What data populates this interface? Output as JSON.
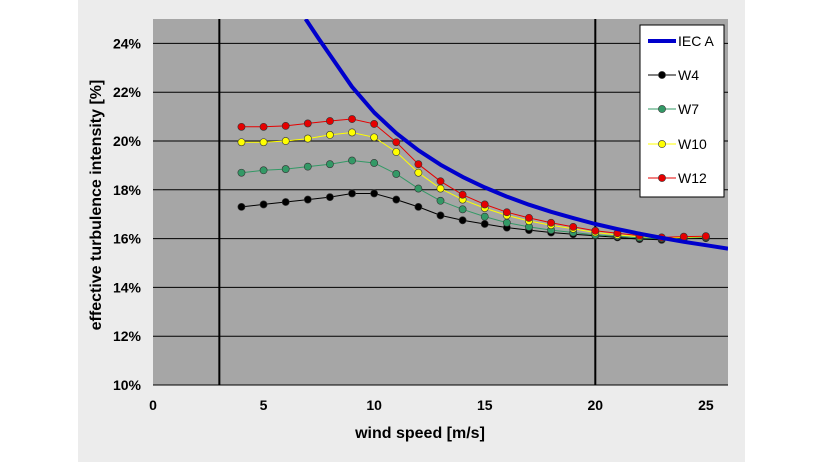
{
  "colors": {
    "page_background": "#ffffff",
    "chart_area": "#ececec",
    "plot_area": "#a6a6a6",
    "gridline": "#000000",
    "legend_background": "#ffffff"
  },
  "chart_data": {
    "type": "line",
    "title": "",
    "xlabel": "wind speed [m/s]",
    "ylabel": "effective turbulence intensity [%]",
    "xlim": [
      0,
      26
    ],
    "ylim": [
      0.1,
      0.25
    ],
    "x_ticks": [
      0,
      5,
      10,
      15,
      20,
      25
    ],
    "x_tick_labels": [
      "0",
      "5",
      "10",
      "15",
      "20",
      "25"
    ],
    "y_ticks": [
      0.1,
      0.12,
      0.14,
      0.16,
      0.18,
      0.2,
      0.22,
      0.24
    ],
    "y_tick_labels": [
      "10%",
      "12%",
      "14%",
      "16%",
      "18%",
      "20%",
      "22%",
      "24%"
    ],
    "grid": "horizontal",
    "vertical_reference_lines_x": [
      3,
      20
    ],
    "legend_position": "top-right",
    "x": [
      4,
      5,
      6,
      7,
      8,
      9,
      10,
      11,
      12,
      13,
      14,
      15,
      16,
      17,
      18,
      19,
      20,
      21,
      22,
      23,
      24,
      25
    ],
    "series": [
      {
        "name": "IEC A",
        "color": "#0000cc",
        "style": "thick line, no markers",
        "x": [
          6.9,
          7.5,
          8,
          9,
          10,
          11,
          12,
          13,
          14,
          15,
          16,
          17,
          18,
          19,
          20,
          21,
          22,
          23,
          24,
          25,
          26
        ],
        "values": [
          0.25,
          0.2418,
          0.2353,
          0.2222,
          0.2117,
          0.2032,
          0.1962,
          0.1903,
          0.1853,
          0.181,
          0.1772,
          0.1739,
          0.171,
          0.1684,
          0.166,
          0.1639,
          0.162,
          0.1603,
          0.1587,
          0.1573,
          0.1559
        ]
      },
      {
        "name": "W4",
        "color": "#000000",
        "values": [
          0.173,
          0.174,
          0.175,
          0.176,
          0.177,
          0.1785,
          0.1785,
          0.176,
          0.173,
          0.1695,
          0.1675,
          0.166,
          0.1645,
          0.1635,
          0.1625,
          0.1618,
          0.1612,
          0.1605,
          0.1598,
          0.1595,
          0.16,
          0.1602
        ]
      },
      {
        "name": "W7",
        "color": "#339966",
        "values": [
          0.187,
          0.188,
          0.1885,
          0.1895,
          0.1905,
          0.192,
          0.191,
          0.1865,
          0.1805,
          0.1755,
          0.172,
          0.169,
          0.1665,
          0.1648,
          0.1635,
          0.1625,
          0.1615,
          0.161,
          0.1603,
          0.16,
          0.1603,
          0.1605
        ]
      },
      {
        "name": "W10",
        "color": "#ffff00",
        "values": [
          0.1995,
          0.1995,
          0.2,
          0.201,
          0.2025,
          0.2035,
          0.2015,
          0.1955,
          0.187,
          0.1805,
          0.176,
          0.1725,
          0.1695,
          0.1672,
          0.1655,
          0.164,
          0.1625,
          0.1615,
          0.1608,
          0.1603,
          0.1605,
          0.1608
        ]
      },
      {
        "name": "W12",
        "color": "#e60000",
        "values": [
          0.2058,
          0.2058,
          0.2062,
          0.2072,
          0.2082,
          0.209,
          0.207,
          0.1995,
          0.1905,
          0.1835,
          0.178,
          0.174,
          0.1708,
          0.1685,
          0.1665,
          0.1648,
          0.1632,
          0.1622,
          0.1612,
          0.1605,
          0.1608,
          0.161
        ]
      }
    ]
  }
}
